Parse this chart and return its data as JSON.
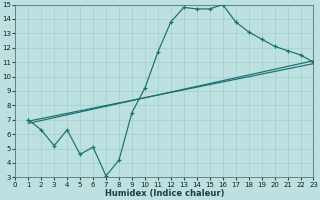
{
  "xlabel": "Humidex (Indice chaleur)",
  "xlim": [
    0,
    23
  ],
  "ylim": [
    3,
    15
  ],
  "xticks": [
    0,
    1,
    2,
    3,
    4,
    5,
    6,
    7,
    8,
    9,
    10,
    11,
    12,
    13,
    14,
    15,
    16,
    17,
    18,
    19,
    20,
    21,
    22,
    23
  ],
  "yticks": [
    3,
    4,
    5,
    6,
    7,
    8,
    9,
    10,
    11,
    12,
    13,
    14,
    15
  ],
  "bg_color": "#bde0e0",
  "line_color": "#1a7070",
  "grid_color": "#9fcfcf",
  "curve_x": [
    1,
    2,
    3,
    4,
    5,
    6,
    7,
    8,
    9,
    10,
    11,
    12,
    13,
    14,
    15,
    16,
    17,
    18,
    19,
    20,
    21,
    22,
    23
  ],
  "curve_y": [
    7.0,
    6.3,
    5.2,
    6.3,
    4.6,
    5.1,
    3.1,
    4.2,
    7.5,
    9.2,
    11.7,
    13.8,
    14.8,
    14.7,
    14.7,
    15.0,
    13.8,
    13.1,
    12.6,
    12.1,
    11.8,
    11.5,
    11.0
  ],
  "regline1_x": [
    1,
    23
  ],
  "regline1_y": [
    6.9,
    10.9
  ],
  "regline2_x": [
    1,
    23
  ],
  "regline2_y": [
    6.75,
    11.1
  ]
}
